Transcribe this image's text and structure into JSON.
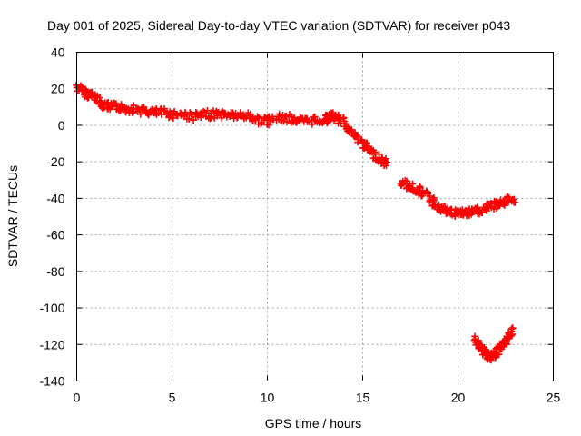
{
  "chart_data": {
    "type": "scatter",
    "title": "Day 001 of 2025, Sidereal Day-to-day VTEC variation (SDTVAR) for receiver p043",
    "xlabel": "GPS time / hours",
    "ylabel": "SDTVAR / TECUs",
    "xlim": [
      0,
      25
    ],
    "ylim": [
      -140,
      40
    ],
    "xticks": [
      0,
      5,
      10,
      15,
      20,
      25
    ],
    "yticks": [
      40,
      20,
      0,
      -20,
      -40,
      -60,
      -80,
      -100,
      -120,
      -140
    ],
    "xtick_labels": [
      "0",
      "5",
      "10",
      "15",
      "20",
      "25"
    ],
    "ytick_labels": [
      "40",
      "20",
      "0",
      "-20",
      "-40",
      "-60",
      "-80",
      "-100",
      "-120",
      "-140"
    ],
    "grid": true,
    "legend": "none",
    "marker": "plus",
    "color": "#ff0000",
    "series": [
      {
        "name": "main",
        "x": [
          0.0,
          0.3,
          0.6,
          0.9,
          1.2,
          1.5,
          1.8,
          2.2,
          2.6,
          3.0,
          3.5,
          4.0,
          4.5,
          5.0,
          5.5,
          6.0,
          6.5,
          7.0,
          7.5,
          8.0,
          8.5,
          9.0,
          9.5,
          10.0,
          10.5,
          11.0,
          11.5,
          12.0,
          12.5,
          13.0,
          13.3,
          13.6,
          14.0,
          14.3,
          14.6,
          15.0,
          15.3,
          15.6,
          16.0,
          16.3
        ],
        "y": [
          21,
          19,
          17,
          16,
          13,
          11,
          10,
          10,
          9,
          9,
          8,
          7,
          7,
          6,
          6,
          5,
          5,
          6,
          6,
          6,
          5,
          5,
          3,
          2,
          4,
          4,
          3,
          2,
          3,
          3,
          5,
          4,
          2,
          -2,
          -6,
          -10,
          -13,
          -16,
          -19,
          -22
        ]
      },
      {
        "name": "segment-2",
        "x": [
          17.0,
          17.4,
          17.8,
          18.2,
          18.6,
          19.0,
          19.4,
          19.8,
          20.2,
          20.6,
          21.0,
          21.4,
          21.8,
          22.2,
          22.6,
          23.0
        ],
        "y": [
          -31,
          -33,
          -35,
          -37,
          -41,
          -45,
          -47,
          -48,
          -48,
          -48,
          -47,
          -46,
          -44,
          -43,
          -41,
          -40
        ]
      },
      {
        "name": "segment-3",
        "x": [
          20.9,
          21.1,
          21.3,
          21.5,
          21.7,
          21.9,
          22.1,
          22.3,
          22.5,
          22.7,
          22.9
        ],
        "y": [
          -117,
          -120,
          -123,
          -126,
          -127,
          -126,
          -124,
          -121,
          -118,
          -115,
          -112
        ]
      }
    ]
  }
}
